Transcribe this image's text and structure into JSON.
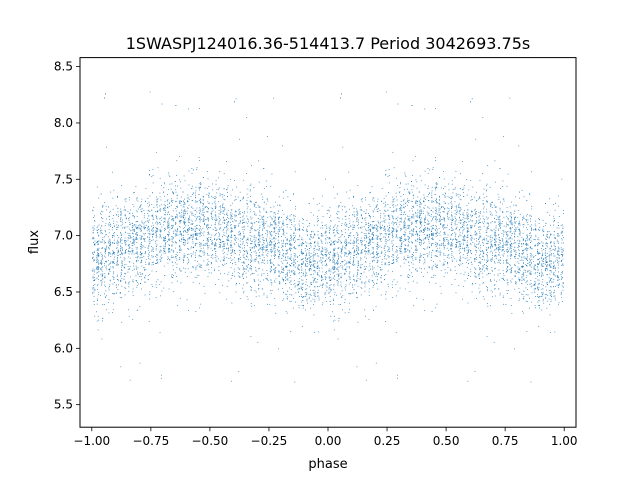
{
  "chart_data": {
    "type": "scatter",
    "title": "1SWASPJ124016.36-514413.7 Period 3042693.75s",
    "xlabel": "phase",
    "ylabel": "flux",
    "xlim": [
      -1.05,
      1.05
    ],
    "ylim": [
      5.3,
      8.58
    ],
    "x_ticks": [
      -1.0,
      -0.75,
      -0.5,
      -0.25,
      0.0,
      0.25,
      0.5,
      0.75,
      1.0
    ],
    "x_tick_labels": [
      "−1.00",
      "−0.75",
      "−0.50",
      "−0.25",
      "0.00",
      "0.25",
      "0.50",
      "0.75",
      "1.00"
    ],
    "y_ticks": [
      5.5,
      6.0,
      6.5,
      7.0,
      7.5,
      8.0,
      8.5
    ],
    "y_tick_labels": [
      "5.5",
      "6.0",
      "6.5",
      "7.0",
      "7.5",
      "8.0",
      "8.5"
    ],
    "grid": false,
    "legend": "none",
    "marker_color": "#1f77b4",
    "series": [
      {
        "x_range": [
          -1.0,
          1.0
        ],
        "phase_shift": 1.0,
        "mean_flux_profile": [
          {
            "phase": 0.0,
            "flux": 6.78
          },
          {
            "phase": 0.1,
            "flux": 6.88
          },
          {
            "phase": 0.2,
            "flux": 6.93
          },
          {
            "phase": 0.3,
            "flux": 7.02
          },
          {
            "phase": 0.4,
            "flux": 7.08
          },
          {
            "phase": 0.5,
            "flux": 7.06
          },
          {
            "phase": 0.6,
            "flux": 6.98
          },
          {
            "phase": 0.7,
            "flux": 6.95
          },
          {
            "phase": 0.8,
            "flux": 6.85
          },
          {
            "phase": 0.9,
            "flux": 6.75
          },
          {
            "phase": 1.0,
            "flux": 6.78
          }
        ],
        "scatter_sigma": 0.22,
        "flux_range": [
          5.45,
          8.45
        ]
      }
    ]
  }
}
